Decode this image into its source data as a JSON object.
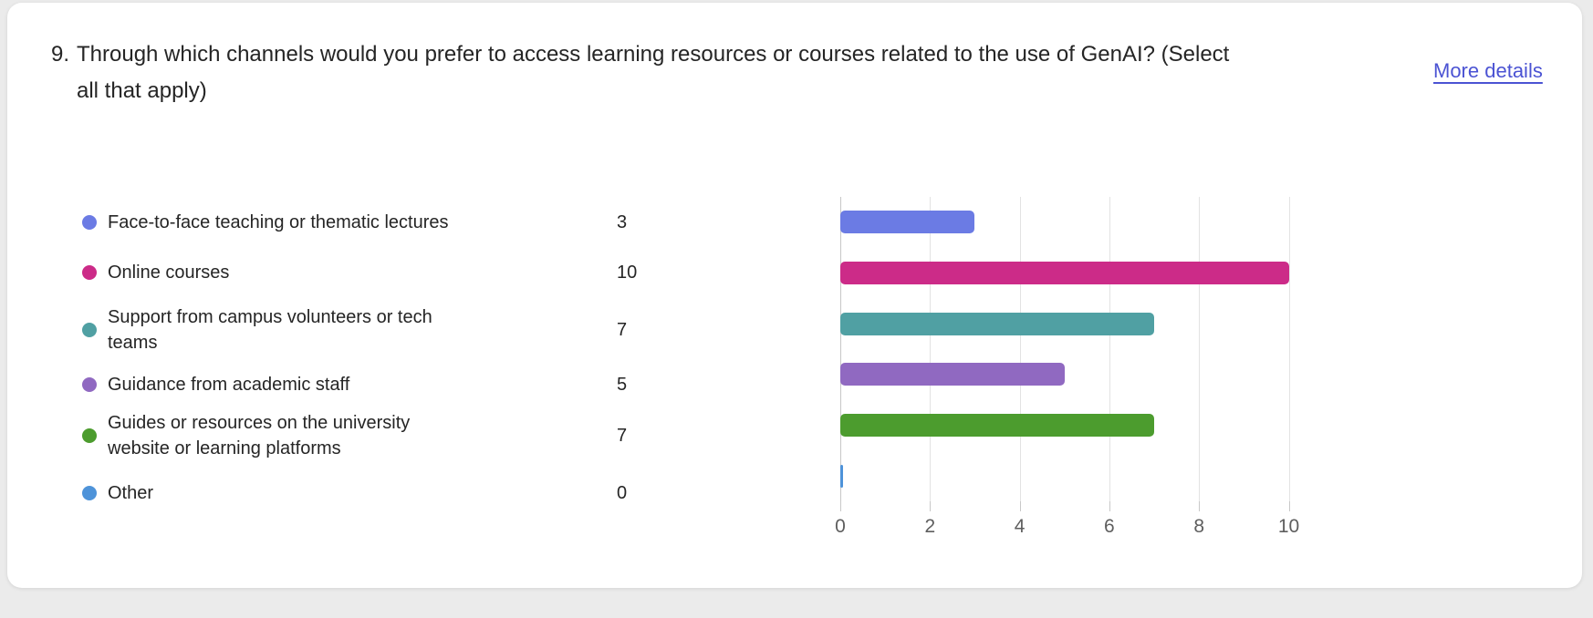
{
  "question": {
    "number": "9.",
    "text": "Through which channels would you prefer to access learning resources or courses related to the use of GenAI? (Select all that apply)",
    "lines": [
      "Through which channels would you prefer to access learning resources or courses related to the use of GenAI? (Select",
      "all that apply)"
    ]
  },
  "more_details_label": "More details",
  "colors": {
    "background": "#EBEBEB",
    "card": "#FFFFFF",
    "link": "#4B53D3",
    "text": "#252525",
    "axis_label": "#5E5E5E",
    "gridline": "#E3E3E3",
    "axis_line": "#C7C7C7"
  },
  "legend": {
    "items": [
      {
        "label": "Face-to-face teaching or thematic lectures",
        "lines": [
          "Face-to-face teaching or thematic lectures"
        ],
        "value": 3,
        "color": "#6B7BE4"
      },
      {
        "label": "Online courses",
        "lines": [
          "Online courses"
        ],
        "value": 10,
        "color": "#CC2B88"
      },
      {
        "label": "Support from campus volunteers or tech teams",
        "lines": [
          "Support from campus volunteers or tech",
          "teams"
        ],
        "value": 7,
        "color": "#50A0A3"
      },
      {
        "label": "Guidance from academic staff",
        "lines": [
          "Guidance from academic staff"
        ],
        "value": 5,
        "color": "#9069C1"
      },
      {
        "label": "Guides or resources on the university website or learning platforms",
        "lines": [
          "Guides or resources on the university",
          "website or learning platforms"
        ],
        "value": 7,
        "color": "#4C9C2E"
      },
      {
        "label": "Other",
        "lines": [
          "Other"
        ],
        "value": 0,
        "color": "#4E93D9"
      }
    ]
  },
  "chart_data": {
    "type": "bar",
    "orientation": "horizontal",
    "categories": [
      "Face-to-face teaching or thematic lectures",
      "Online courses",
      "Support from campus volunteers or tech teams",
      "Guidance from academic staff",
      "Guides or resources on the university website or learning platforms",
      "Other"
    ],
    "values": [
      3,
      10,
      7,
      5,
      7,
      0
    ],
    "colors": [
      "#6B7BE4",
      "#CC2B88",
      "#50A0A3",
      "#9069C1",
      "#4C9C2E",
      "#4E93D9"
    ],
    "x_ticks": [
      0,
      2,
      4,
      6,
      8,
      10
    ],
    "xlim": [
      0,
      10
    ],
    "grid": true,
    "legend_position": "left",
    "title": "",
    "xlabel": "",
    "ylabel": ""
  }
}
